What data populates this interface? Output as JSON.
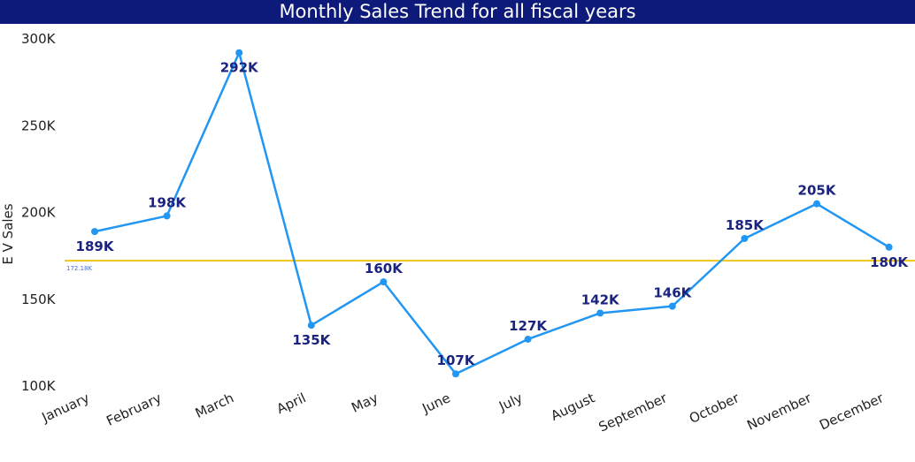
{
  "chart_data": {
    "type": "line",
    "title": "Monthly Sales Trend for all fiscal years",
    "xlabel": "",
    "ylabel": "E V Sales",
    "categories": [
      "January",
      "February",
      "March",
      "April",
      "May",
      "June",
      "July",
      "August",
      "September",
      "October",
      "November",
      "December"
    ],
    "series": [
      {
        "values": [
          189000,
          198000,
          292000,
          135000,
          160000,
          107000,
          127000,
          142000,
          146000,
          185000,
          205000,
          180000
        ],
        "labels": [
          "189K",
          "198K",
          "292K",
          "135K",
          "160K",
          "107K",
          "127K",
          "142K",
          "146K",
          "185K",
          "205K",
          "180K"
        ],
        "color": "#2196f3"
      }
    ],
    "ylim": [
      100000,
      300000
    ],
    "yticks": [
      100000,
      150000,
      200000,
      250000,
      300000
    ],
    "ytick_labels": [
      "100K",
      "150K",
      "200K",
      "250K",
      "300K"
    ],
    "reference_line": {
      "value": 172180,
      "label": "172.18K",
      "color": "#f0c419"
    },
    "grid": false,
    "legend": "none"
  }
}
